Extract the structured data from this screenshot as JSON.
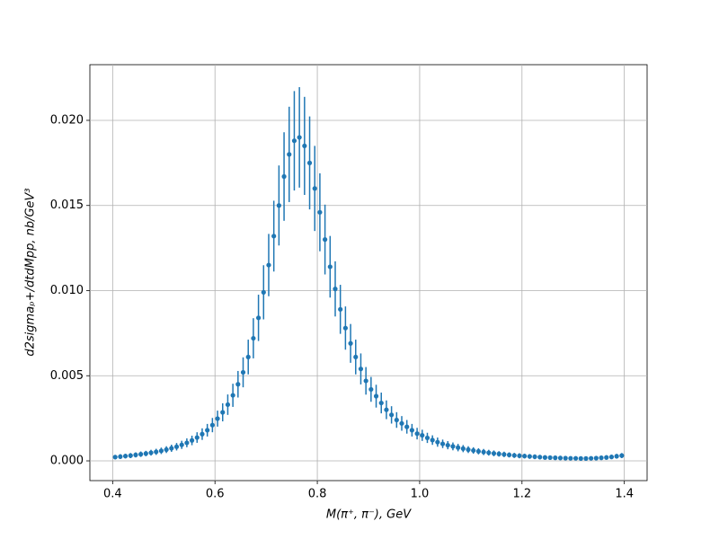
{
  "chart_data": {
    "type": "errorbar",
    "xlabel": "M(π⁺, π⁻), GeV",
    "ylabel": "d2sigmaₚ+/dtdMpp, nb/GeV³",
    "color": "#1f77b4",
    "grid": true,
    "xlim": [
      0.3555,
      1.4445
    ],
    "ylim": [
      -0.00116,
      0.02327
    ],
    "xticks": [
      0.4,
      0.6,
      0.8,
      {
        "value": 1,
        "label": "1.0"
      },
      1.2,
      1.4
    ],
    "yticks": [
      {
        "value": 0,
        "label": "0.000"
      },
      {
        "value": 0.005,
        "label": "0.005"
      },
      {
        "value": 0.01,
        "label": "0.010"
      },
      {
        "value": 0.015,
        "label": "0.015"
      },
      {
        "value": 0.02,
        "label": "0.020"
      }
    ],
    "x": [
      0.405,
      0.415,
      0.425,
      0.435,
      0.445,
      0.455,
      0.465,
      0.475,
      0.485,
      0.495,
      0.505,
      0.515,
      0.525,
      0.535,
      0.545,
      0.555,
      0.565,
      0.575,
      0.585,
      0.595,
      0.605,
      0.615,
      0.625,
      0.635,
      0.645,
      0.655,
      0.665,
      0.675,
      0.685,
      0.695,
      0.705,
      0.715,
      0.725,
      0.735,
      0.745,
      0.755,
      0.765,
      0.775,
      0.785,
      0.795,
      0.805,
      0.815,
      0.825,
      0.835,
      0.845,
      0.855,
      0.865,
      0.875,
      0.885,
      0.895,
      0.905,
      0.915,
      0.925,
      0.935,
      0.945,
      0.955,
      0.965,
      0.975,
      0.985,
      0.995,
      1.005,
      1.015,
      1.025,
      1.035,
      1.045,
      1.055,
      1.065,
      1.075,
      1.085,
      1.095,
      1.105,
      1.115,
      1.125,
      1.135,
      1.145,
      1.155,
      1.165,
      1.175,
      1.185,
      1.195,
      1.205,
      1.215,
      1.225,
      1.235,
      1.245,
      1.255,
      1.265,
      1.275,
      1.285,
      1.295,
      1.305,
      1.315,
      1.325,
      1.335,
      1.345,
      1.355,
      1.365,
      1.375,
      1.385,
      1.395
    ],
    "values": [
      0.00022,
      0.00025,
      0.00028,
      0.00031,
      0.00035,
      0.00039,
      0.00043,
      0.00048,
      0.00053,
      0.00059,
      0.00066,
      0.00074,
      0.00083,
      0.00094,
      0.00106,
      0.0012,
      0.00137,
      0.00157,
      0.0018,
      0.0021,
      0.00248,
      0.00285,
      0.0033,
      0.00385,
      0.0045,
      0.0052,
      0.0061,
      0.0072,
      0.0084,
      0.0099,
      0.0115,
      0.0132,
      0.015,
      0.0167,
      0.018,
      0.0188,
      0.019,
      0.0185,
      0.0175,
      0.016,
      0.0146,
      0.013,
      0.0114,
      0.0101,
      0.0089,
      0.0078,
      0.0069,
      0.0061,
      0.0054,
      0.0047,
      0.0042,
      0.0038,
      0.0034,
      0.003,
      0.0027,
      0.0024,
      0.0022,
      0.002,
      0.0018,
      0.0016,
      0.0015,
      0.00135,
      0.00122,
      0.0011,
      0.001,
      0.00092,
      0.00085,
      0.00078,
      0.00072,
      0.00066,
      0.00061,
      0.00056,
      0.00052,
      0.00048,
      0.00044,
      0.00041,
      0.00038,
      0.00035,
      0.00032,
      0.0003,
      0.00028,
      0.00026,
      0.00024,
      0.00022,
      0.0002,
      0.00019,
      0.00018,
      0.00017,
      0.00016,
      0.00015,
      0.00015,
      0.00014,
      0.00014,
      0.00015,
      0.00016,
      0.00018,
      0.0002,
      0.00023,
      0.00027,
      0.00031
    ],
    "errors": [
      0.00013,
      0.00014,
      0.00014,
      0.00015,
      0.00015,
      0.00016,
      0.00016,
      0.00017,
      0.00018,
      0.00019,
      0.0002,
      0.00021,
      0.00022,
      0.00024,
      0.00026,
      0.00028,
      0.00031,
      0.00034,
      0.00037,
      0.00042,
      0.00047,
      0.00053,
      0.0006,
      0.00068,
      0.00078,
      0.00088,
      0.00102,
      0.00118,
      0.00136,
      0.00159,
      0.00183,
      0.00208,
      0.00235,
      0.0026,
      0.0028,
      0.00292,
      0.00295,
      0.00288,
      0.00273,
      0.0025,
      0.00229,
      0.00205,
      0.00181,
      0.00162,
      0.00144,
      0.00127,
      0.00114,
      0.00102,
      0.00091,
      0.00081,
      0.00073,
      0.00067,
      0.00061,
      0.00055,
      0.00051,
      0.00046,
      0.00043,
      0.0004,
      0.00037,
      0.00034,
      0.00033,
      0.0003,
      0.00028,
      0.00027,
      0.00025,
      0.00024,
      0.00023,
      0.00022,
      0.00021,
      0.0002,
      0.00019,
      0.00018,
      0.00018,
      0.00017,
      0.00017,
      0.00016,
      0.00016,
      0.00015,
      0.00015,
      0.00015,
      0.00014,
      0.00014,
      0.00014,
      0.00013,
      0.00013,
      0.00013,
      0.00013,
      0.00013,
      0.00012,
      0.00012,
      0.00012,
      0.00012,
      0.00012,
      0.00012,
      0.00012,
      0.00013,
      0.00013,
      0.00013,
      0.00014,
      0.00015
    ]
  }
}
